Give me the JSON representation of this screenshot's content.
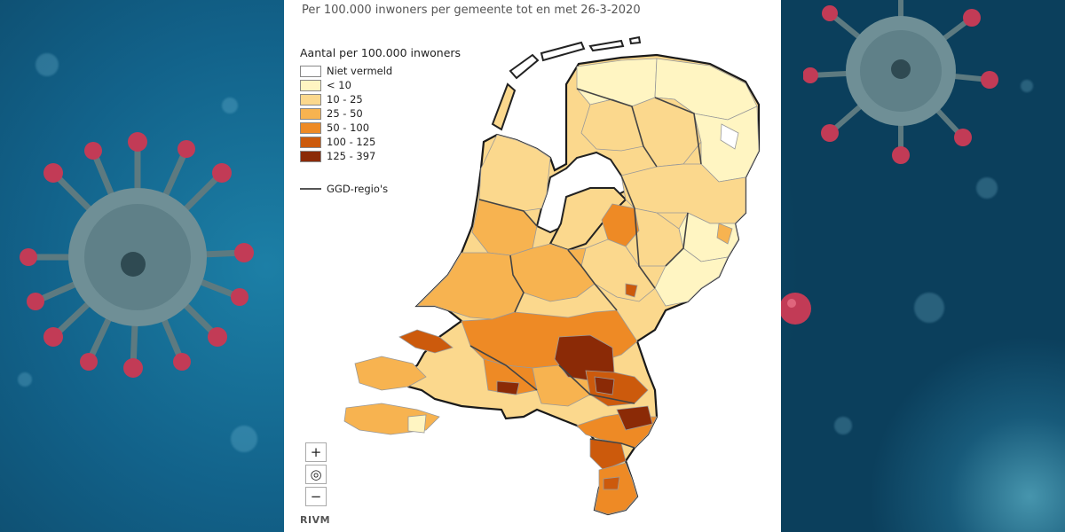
{
  "map": {
    "subtitle": "Per 100.000 inwoners per gemeente tot en met 26-3-2020",
    "legend": {
      "title": "Aantal per 100.000 inwoners",
      "items": [
        {
          "label": "Niet vermeld",
          "color": "#ffffff"
        },
        {
          "label": "< 10",
          "color": "#fff5c2"
        },
        {
          "label": "10 - 25",
          "color": "#fbd88d"
        },
        {
          "label": "25 - 50",
          "color": "#f7b350"
        },
        {
          "label": "50 - 100",
          "color": "#ee8a25"
        },
        {
          "label": "100 - 125",
          "color": "#cc5a0c"
        },
        {
          "label": "125 - 397",
          "color": "#8b2a06"
        }
      ],
      "boundary_label": "GGD-regio's",
      "boundary_color": "#555555"
    },
    "controls": {
      "zoom_in": "+",
      "locate": "◎",
      "zoom_out": "−"
    },
    "brand": "RIVM"
  },
  "colors": {
    "background": "#0e4e6c",
    "panel": "#ffffff",
    "water": "#ffffff",
    "virus_body": "#6f8f96",
    "virus_spike": "#c23b56"
  }
}
